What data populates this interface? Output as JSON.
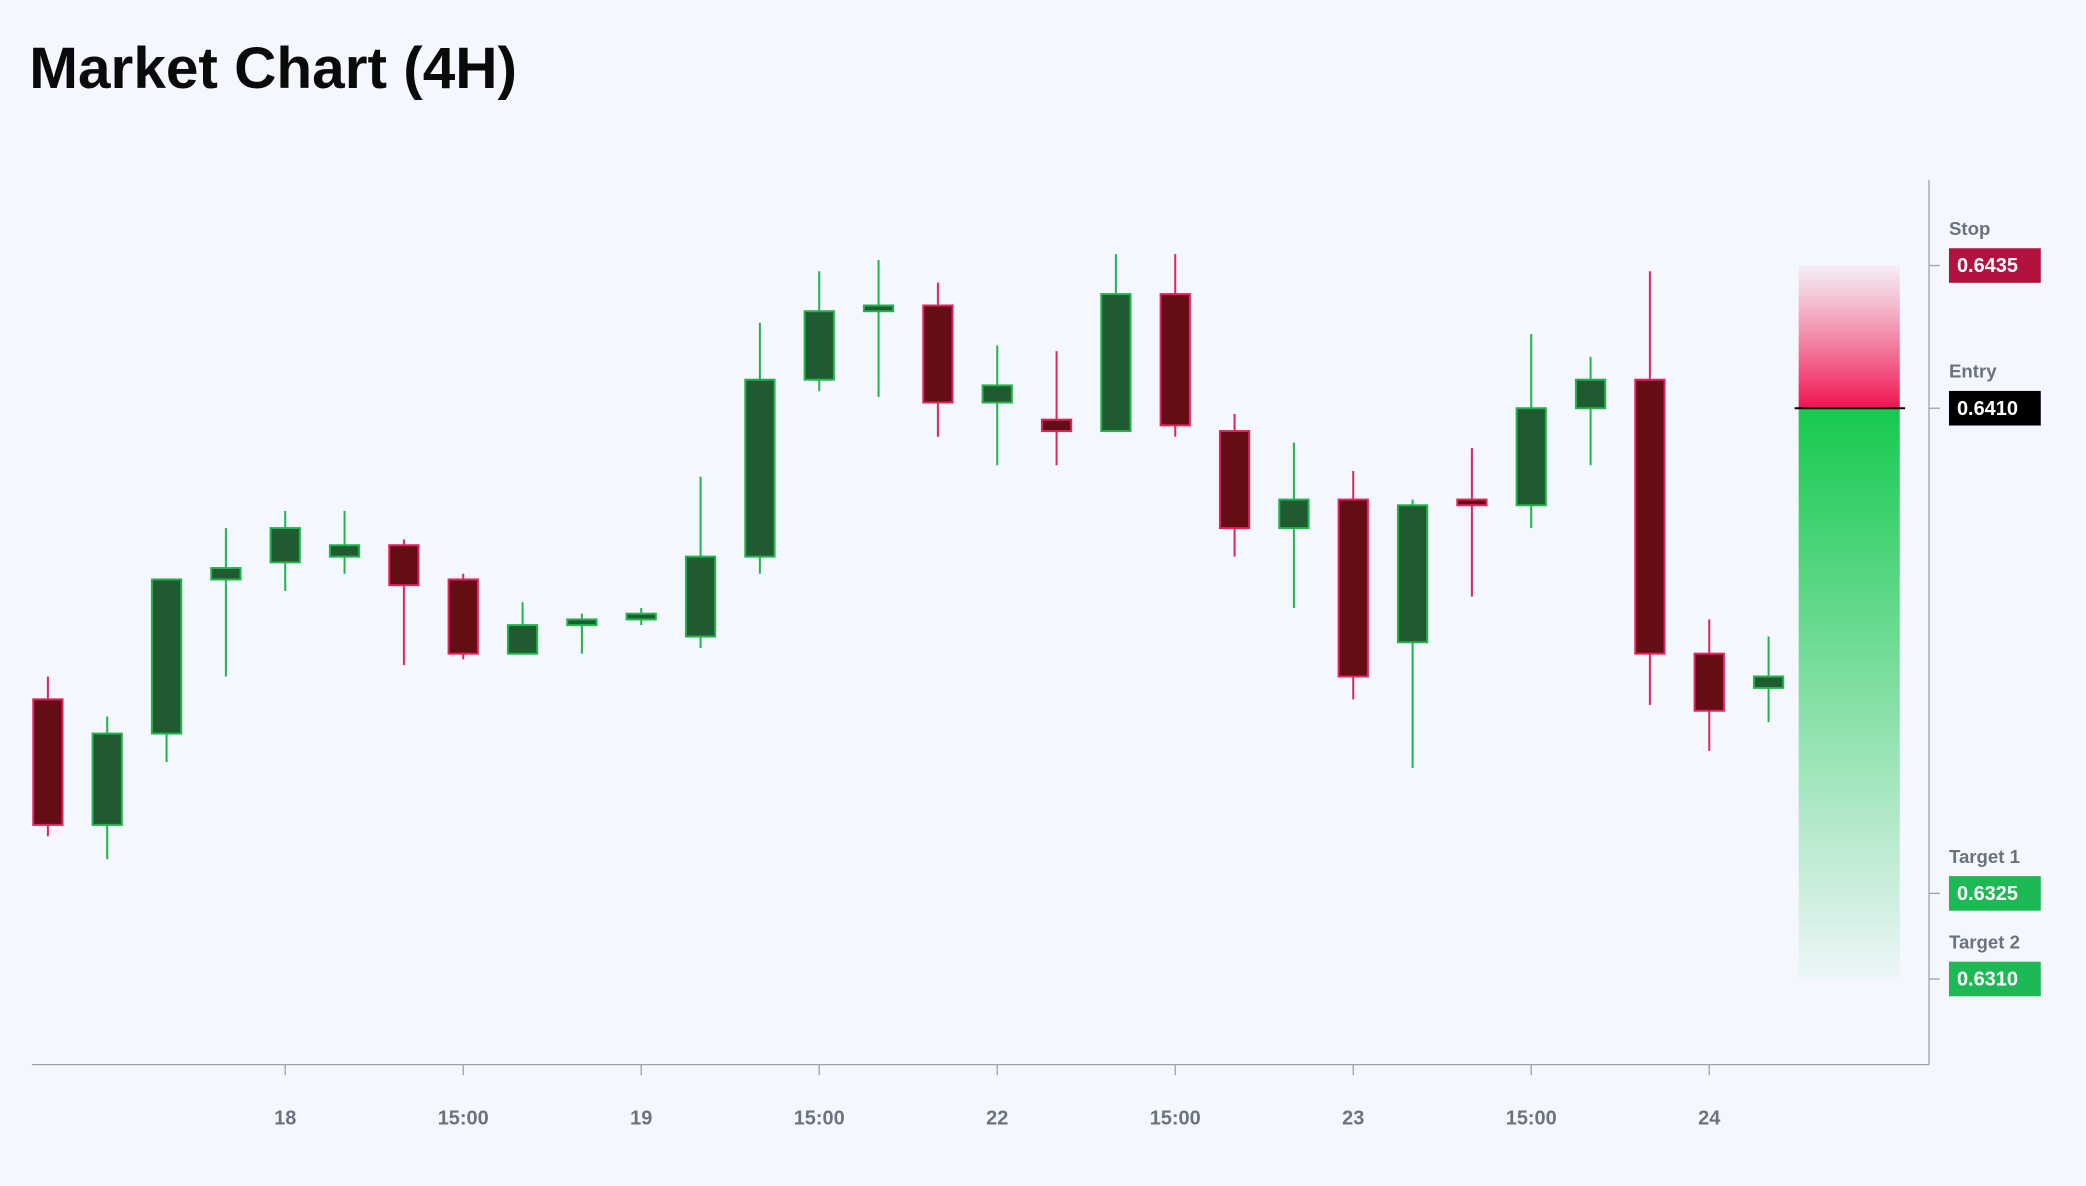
{
  "chart_data": {
    "type": "candlestick",
    "title": "Market Chart (4H)",
    "categories": [
      null,
      null,
      null,
      null,
      "18",
      null,
      null,
      "15:00",
      null,
      null,
      "19",
      null,
      null,
      "15:00",
      null,
      null,
      "22",
      null,
      null,
      "15:00",
      null,
      null,
      "23",
      null,
      null,
      "15:00",
      null,
      null,
      "24",
      null
    ],
    "open": [
      0.6359,
      0.6337,
      0.6353,
      0.638,
      0.6383,
      0.6384,
      0.6386,
      0.638,
      0.6367,
      0.6372,
      0.6373,
      0.637,
      0.6384,
      0.6415,
      0.6427,
      0.6428,
      0.6411,
      0.6408,
      0.6406,
      0.643,
      0.6406,
      0.6389,
      0.6394,
      0.6369,
      0.6394,
      0.6393,
      0.641,
      0.6415,
      0.6367,
      0.6361
    ],
    "high": [
      0.6363,
      0.6356,
      0.638,
      0.6389,
      0.6392,
      0.6392,
      0.6387,
      0.6381,
      0.6376,
      0.6374,
      0.6375,
      0.6398,
      0.6425,
      0.6434,
      0.6436,
      0.6432,
      0.6421,
      0.642,
      0.6437,
      0.6437,
      0.6409,
      0.6404,
      0.6399,
      0.6394,
      0.6403,
      0.6423,
      0.6419,
      0.6434,
      0.6373,
      0.637
    ],
    "low": [
      0.6335,
      0.6331,
      0.6348,
      0.6363,
      0.6378,
      0.6381,
      0.6365,
      0.6366,
      0.6367,
      0.6367,
      0.6372,
      0.6368,
      0.6381,
      0.6413,
      0.6412,
      0.6405,
      0.64,
      0.64,
      0.6406,
      0.6405,
      0.6384,
      0.6375,
      0.6359,
      0.6347,
      0.6377,
      0.6389,
      0.64,
      0.6358,
      0.635,
      0.6355
    ],
    "close": [
      0.6337,
      0.6353,
      0.638,
      0.6382,
      0.6389,
      0.6386,
      0.6379,
      0.6367,
      0.6372,
      0.6373,
      0.6374,
      0.6384,
      0.6415,
      0.6427,
      0.6428,
      0.6411,
      0.6414,
      0.6406,
      0.643,
      0.6407,
      0.6389,
      0.6394,
      0.6363,
      0.6393,
      0.6393,
      0.641,
      0.6415,
      0.6367,
      0.6357,
      0.6363
    ],
    "up_color": "#1f5a30",
    "up_edge": "#22b34c",
    "down_color": "#640d14",
    "down_edge": "#e0245e",
    "ylim": [
      0.6295,
      0.645
    ],
    "levels": [
      {
        "name": "Stop",
        "value": 0.6435,
        "label": "0.6435",
        "color": "#b3123f"
      },
      {
        "name": "Entry",
        "value": 0.641,
        "label": "0.6410",
        "color": "#000000"
      },
      {
        "name": "Target 1",
        "value": 0.6325,
        "label": "0.6325",
        "color": "#1db954"
      },
      {
        "name": "Target 2",
        "value": 0.631,
        "label": "0.6310",
        "color": "#1db954"
      }
    ]
  }
}
